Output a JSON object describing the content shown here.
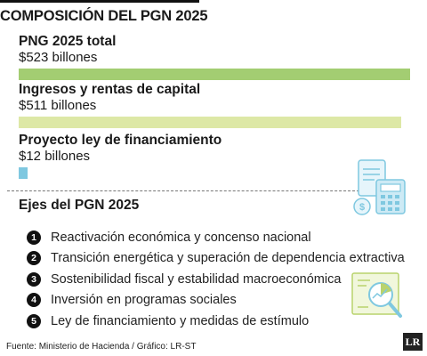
{
  "header": {
    "title": "COMPOSICIÓN DEL PGN 2025"
  },
  "chart_data": {
    "type": "bar",
    "orientation": "horizontal",
    "categories": [
      "PNG 2025 total",
      "Ingresos y rentas de capital",
      "Proyecto ley de financiamiento"
    ],
    "values": [
      523,
      511,
      12
    ],
    "value_labels": [
      "$523 billones",
      "$511 billones",
      "$12 billones"
    ],
    "colors": [
      "#a3cd72",
      "#dde8a6",
      "#7fc8e0"
    ],
    "unit": "billones",
    "xlim": [
      0,
      523
    ]
  },
  "ejes": {
    "title": "Ejes del PGN 2025",
    "items": [
      {
        "num": "1",
        "text": "Reactivación económica y concenso nacional"
      },
      {
        "num": "2",
        "text": "Transición energética y superación de dependencia extractiva"
      },
      {
        "num": "3",
        "text": "Sostenibilidad fiscal y estabilidad macroeconómica"
      },
      {
        "num": "4",
        "text": "Inversión en programas sociales"
      },
      {
        "num": "5",
        "text": "Ley de financiamiento y medidas de estímulo"
      }
    ]
  },
  "footer": {
    "source": "Fuente: Ministerio de Hacienda / Gráfico: LR-ST",
    "logo_text": "LR"
  },
  "icons": [
    "calculator-document-icon",
    "magnifier-chart-icon"
  ]
}
